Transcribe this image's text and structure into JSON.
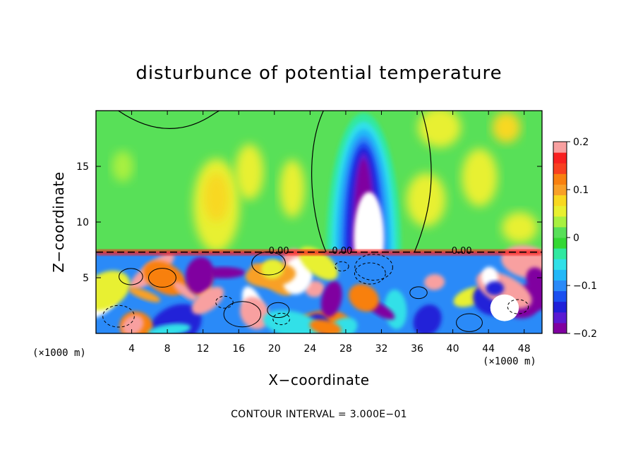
{
  "chart_data": {
    "type": "heatmap",
    "title": "disturbunce of potential temperature",
    "xlabel": "X−coordinate",
    "ylabel": "Z−coordinate",
    "x_unit_left": "(×1000 m)",
    "x_unit_right": "(×1000 m)",
    "x_range": [
      0,
      50
    ],
    "y_range": [
      0,
      20
    ],
    "x_ticks": [
      4,
      8,
      12,
      16,
      20,
      24,
      28,
      32,
      36,
      40,
      44,
      48
    ],
    "y_ticks": [
      5,
      10,
      15
    ],
    "colorbar": {
      "range": [
        -0.2,
        0.2
      ],
      "levels": 18,
      "tick_values": [
        0.2,
        0.1,
        0,
        -0.1,
        -0.2
      ],
      "tick_labels": [
        "0.2",
        "0.1",
        "0",
        "−0.1",
        "−0.2"
      ],
      "colors": [
        "#8000a0",
        "#5a1ad2",
        "#2020d8",
        "#1a4ff0",
        "#2a8af8",
        "#22b8f8",
        "#30e0e8",
        "#30e8a0",
        "#34d834",
        "#58e058",
        "#a8f040",
        "#e8f030",
        "#f8d820",
        "#f8a028",
        "#f88010",
        "#f84020",
        "#f82020",
        "#f8a0a0"
      ]
    },
    "annotations": [
      {
        "text": "0.00",
        "x": 20.5,
        "z": 7.4
      },
      {
        "text": "0.00",
        "x": 27.6,
        "z": 7.4
      },
      {
        "text": "0.00",
        "x": 41.0,
        "z": 7.4
      }
    ],
    "contour_interval_text": "CONTOUR INTERVAL = 3.000E−01",
    "features": {
      "upper_layer_level_z": 7.3,
      "cold_plume": {
        "x_center": 30,
        "x_halfwidth": 4.2,
        "z_bottom": 7.3,
        "z_top": 19.8,
        "min_value": -0.2
      },
      "zero_contour_plume_x": [
        24.0,
        37.0
      ]
    }
  }
}
